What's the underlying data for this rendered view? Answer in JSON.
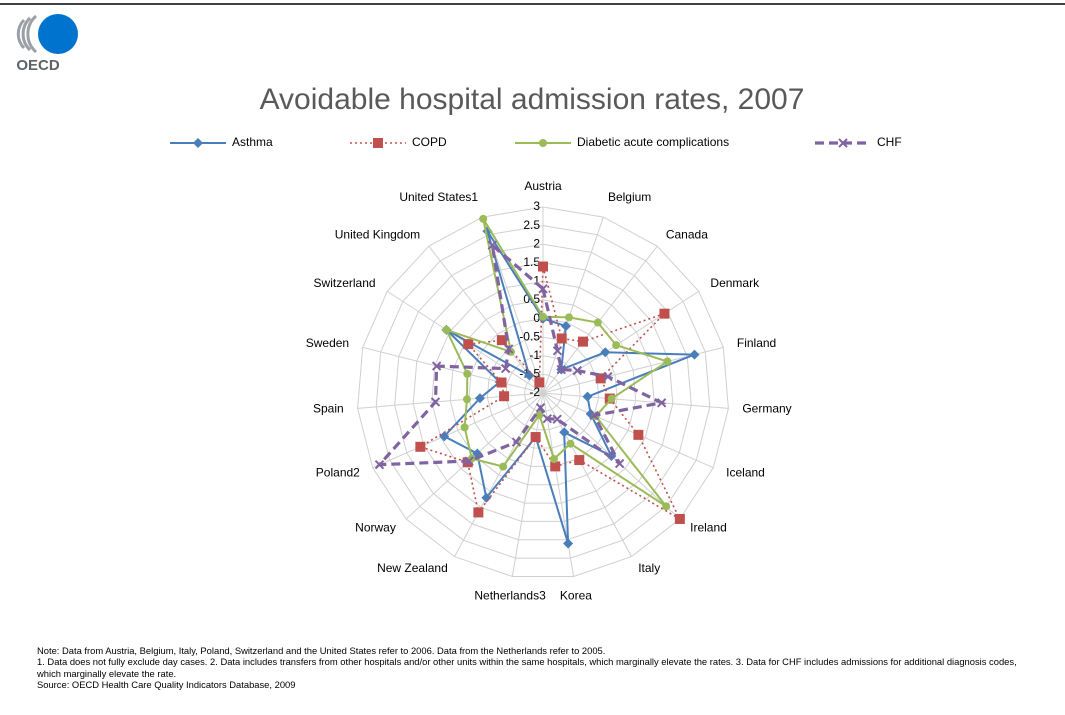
{
  "header": {
    "logo": "OECD"
  },
  "chart_data": {
    "type": "radar",
    "title": "Avoidable hospital admission rates, 2007",
    "categories": [
      "Austria",
      "Belgium",
      "Canada",
      "Denmark",
      "Finland",
      "Germany",
      "Iceland",
      "Ireland",
      "Italy",
      "Korea",
      "Netherlands3",
      "New Zealand",
      "Norway",
      "Poland2",
      "Spain",
      "Sweden",
      "Switzerland",
      "United Kingdom",
      "United States1"
    ],
    "ylim": [
      -2,
      3
    ],
    "yticks": [
      -2,
      -1.5,
      -1,
      -0.5,
      0,
      0.5,
      1,
      1.5,
      2,
      2.5,
      3
    ],
    "grid": true,
    "legend": "top",
    "series": [
      {
        "name": "Asthma",
        "color": "#4a7ebb",
        "line_style": "solid",
        "marker": "diamond",
        "values": [
          0,
          -0.1,
          -1.2,
          0,
          2.2,
          -0.8,
          -0.6,
          0.5,
          -0.8,
          2.1,
          -0.8,
          1.2,
          0.4,
          0.9,
          -0.3,
          -0.8,
          1.1,
          -1.4,
          2.6
        ]
      },
      {
        "name": "COPD",
        "color": "#c0504d",
        "line_style": "dotted",
        "marker": "square",
        "values": [
          1.4,
          -0.45,
          -0.25,
          1.9,
          -0.4,
          -0.2,
          0.8,
          3.0,
          0.05,
          0,
          -0.8,
          1.65,
          0.75,
          1.6,
          -0.95,
          -0.85,
          0.4,
          -0.2,
          -1.7
        ]
      },
      {
        "name": "Diabetic acute complications",
        "color": "#9bbb59",
        "line_style": "solid",
        "marker": "circle",
        "values": [
          0.05,
          0.15,
          0.4,
          0.35,
          1.45,
          -0.15,
          -0.45,
          2.5,
          -0.45,
          -0.2,
          -1.4,
          0.25,
          0.6,
          0.3,
          0.05,
          0.1,
          1.1,
          -0.6,
          2.95
        ]
      },
      {
        "name": "CHF",
        "color": "#8064a2",
        "line_style": "dashed",
        "marker": "x",
        "values": [
          0.8,
          -0.8,
          -1.2,
          -0.9,
          -0.2,
          1.2,
          -0.5,
          0.8,
          -1.2,
          -1.3,
          -1.6,
          -0.5,
          0.7,
          2.8,
          0.9,
          0.95,
          -0.8,
          -0.5,
          2.2
        ]
      }
    ]
  },
  "notes": [
    "Note: Data from Austria, Belgium, Italy, Poland, Switzerland and the United States refer to 2006. Data from the Netherlands refer to 2005.",
    "1. Data does not fully exclude day cases. 2. Data includes transfers from other hospitals and/or other units within the same hospitals, which marginally elevate the rates. 3. Data for CHF includes admissions for additional diagnosis codes, which marginally elevate the rate.",
    "Source: OECD Health Care Quality Indicators Database, 2009"
  ]
}
